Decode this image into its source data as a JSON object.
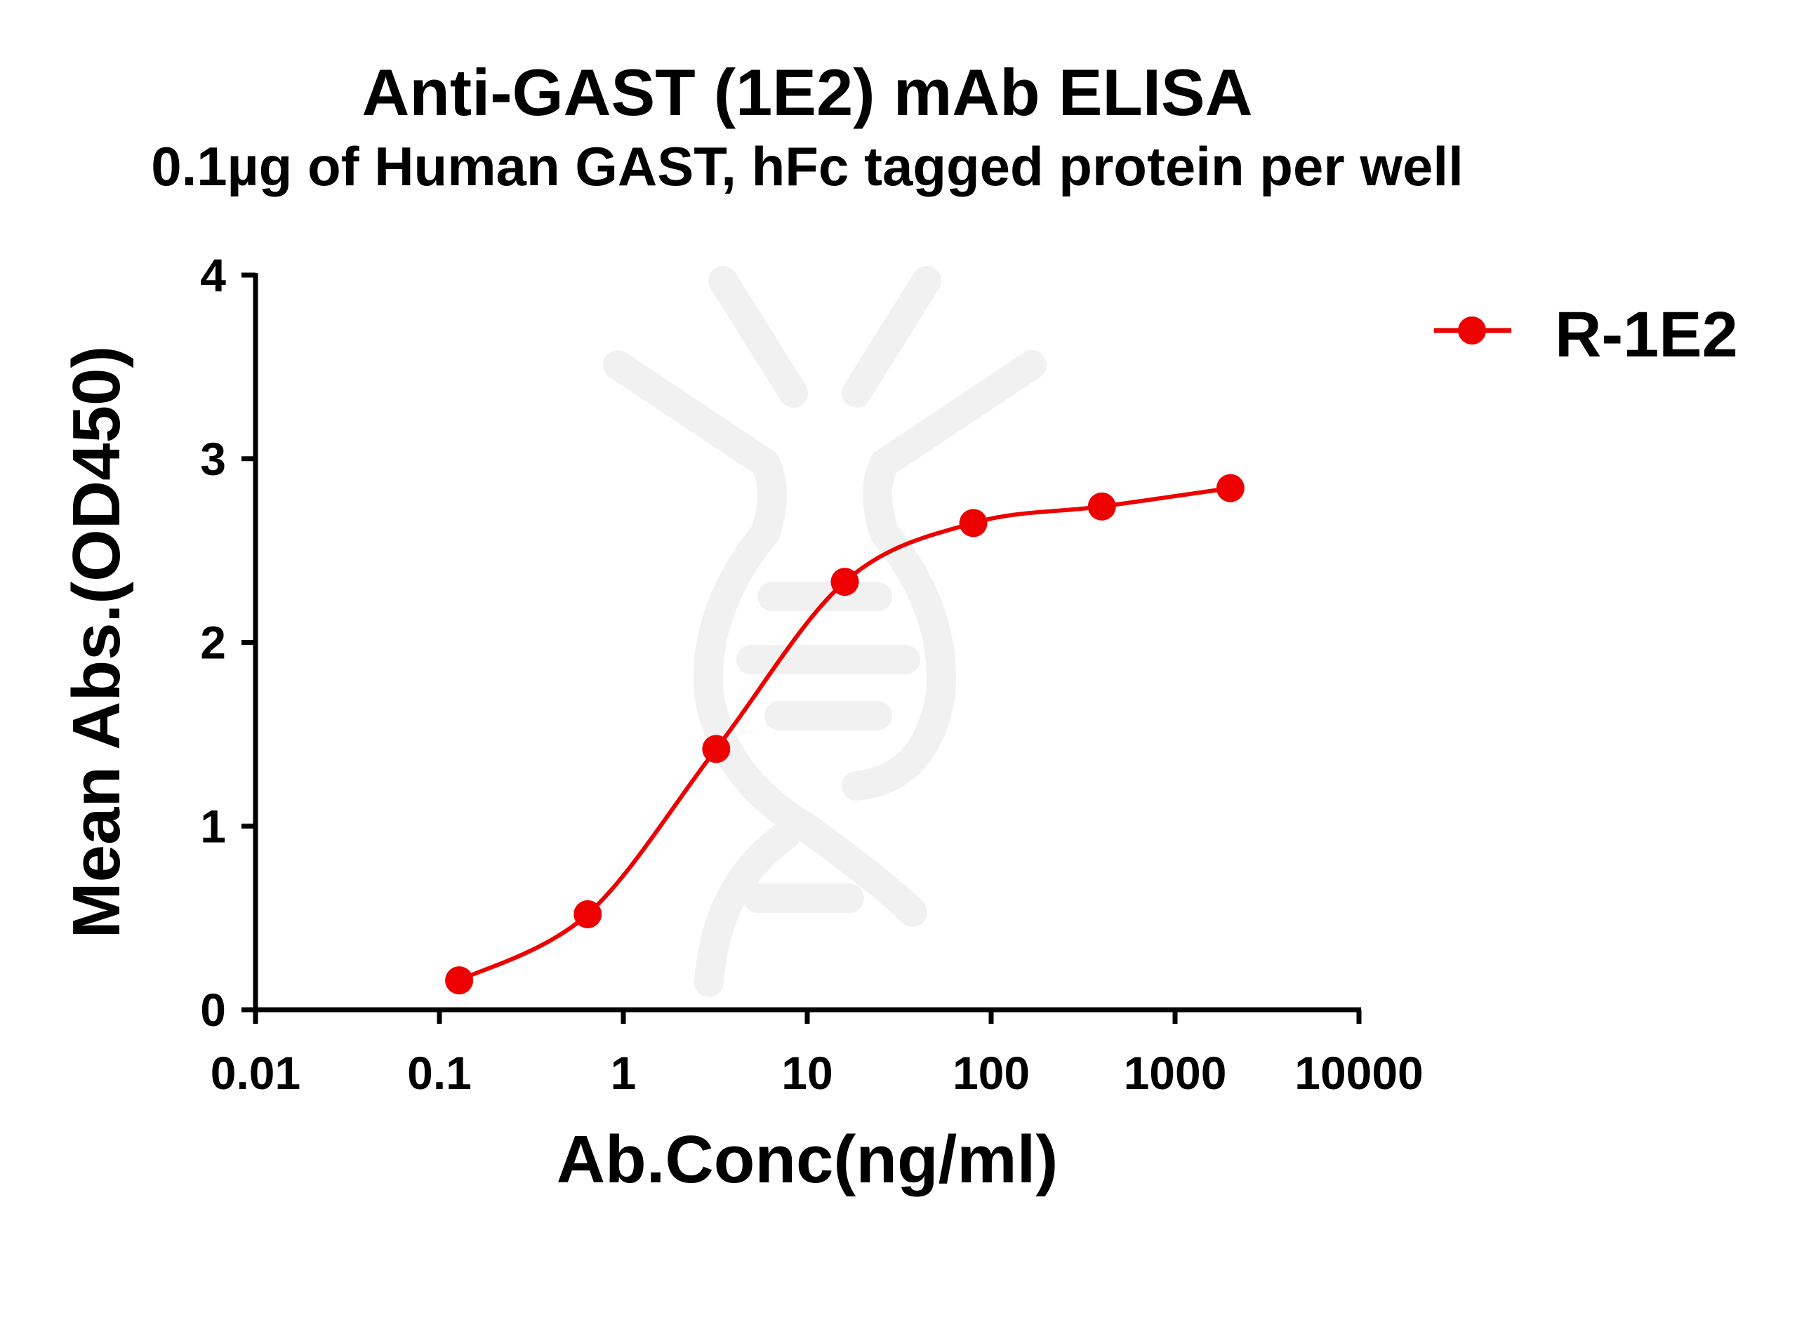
{
  "chart_data": {
    "type": "line",
    "title": "Anti-GAST (1E2) mAb ELISA",
    "subtitle": "0.1µg of Human GAST, hFc tagged protein per well",
    "xlabel": "Ab.Conc(ng/ml)",
    "ylabel": "Mean Abs.(OD450)",
    "x_scale": "log",
    "xlim": [
      0.01,
      10000
    ],
    "ylim": [
      0,
      4
    ],
    "x_ticks": [
      "0.01",
      "0.1",
      "1",
      "10",
      "100",
      "1000",
      "10000"
    ],
    "y_ticks": [
      "0",
      "1",
      "2",
      "3",
      "4"
    ],
    "grid": false,
    "legend_position": "top-right",
    "series": [
      {
        "name": "R-1E2",
        "color": "#ee0000",
        "marker": "circle",
        "x": [
          0.128,
          0.64,
          3.2,
          16,
          80,
          400,
          2000
        ],
        "y": [
          0.16,
          0.52,
          1.42,
          2.33,
          2.65,
          2.74,
          2.84
        ]
      }
    ]
  }
}
